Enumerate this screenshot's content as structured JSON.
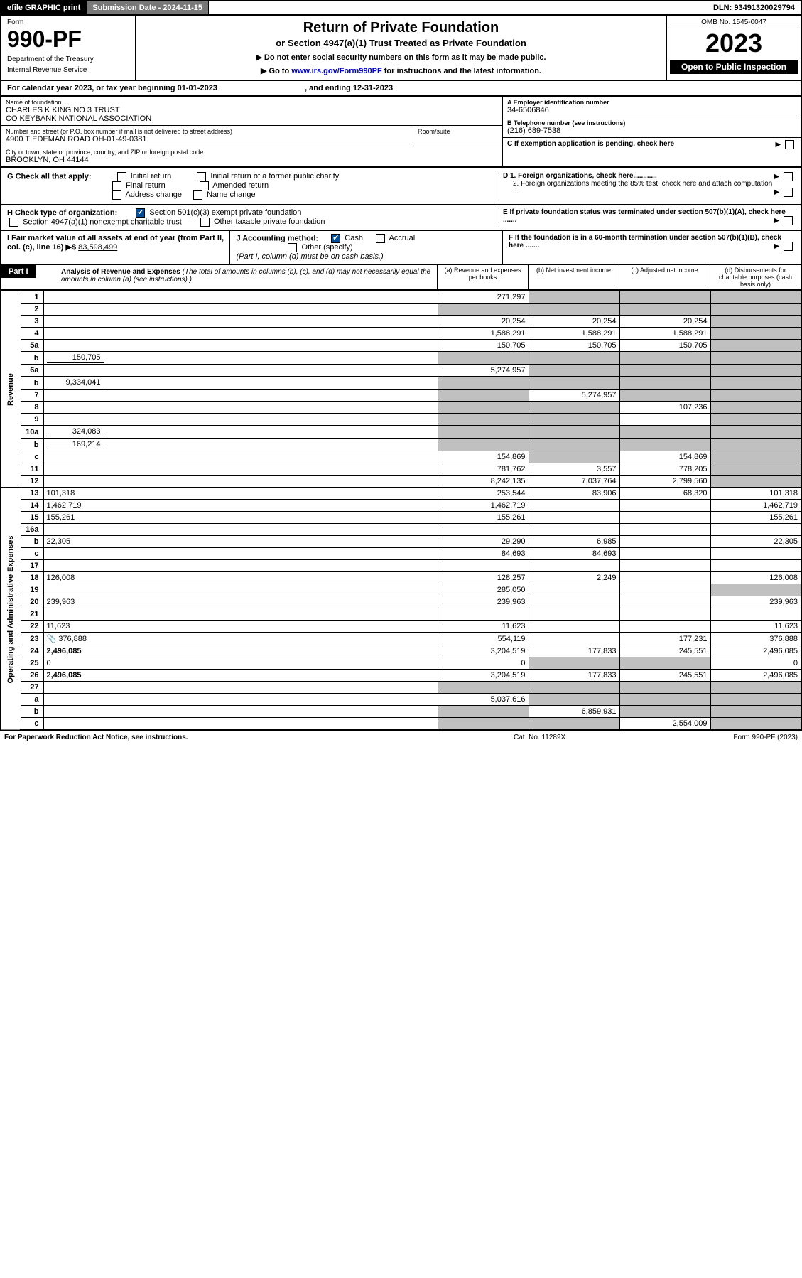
{
  "topbar": {
    "efile": "efile GRAPHIC print",
    "submission": "Submission Date - 2024-11-15",
    "dln": "DLN: 93491320029794"
  },
  "header": {
    "form_label": "Form",
    "form_number": "990-PF",
    "dept1": "Department of the Treasury",
    "dept2": "Internal Revenue Service",
    "title": "Return of Private Foundation",
    "subtitle": "or Section 4947(a)(1) Trust Treated as Private Foundation",
    "note1": "▶ Do not enter social security numbers on this form as it may be made public.",
    "note2_pre": "▶ Go to ",
    "note2_link": "www.irs.gov/Form990PF",
    "note2_post": " for instructions and the latest information.",
    "omb": "OMB No. 1545-0047",
    "year": "2023",
    "open": "Open to Public Inspection"
  },
  "calendar": {
    "text_pre": "For calendar year 2023, or tax year beginning ",
    "begin": "01-01-2023",
    "text_mid": " , and ending ",
    "end": "12-31-2023"
  },
  "info": {
    "name_label": "Name of foundation",
    "name1": "CHARLES K KING NO 3 TRUST",
    "name2": "CO KEYBANK NATIONAL ASSOCIATION",
    "addr_label": "Number and street (or P.O. box number if mail is not delivered to street address)",
    "addr": "4900 TIEDEMAN ROAD OH-01-49-0381",
    "room_label": "Room/suite",
    "city_label": "City or town, state or province, country, and ZIP or foreign postal code",
    "city": "BROOKLYN, OH  44144",
    "a_label": "A Employer identification number",
    "a_val": "34-6506846",
    "b_label": "B Telephone number (see instructions)",
    "b_val": "(216) 689-7538",
    "c_label": "C If exemption application is pending, check here",
    "d1": "D 1. Foreign organizations, check here............",
    "d2": "2. Foreign organizations meeting the 85% test, check here and attach computation ...",
    "e": "E  If private foundation status was terminated under section 507(b)(1)(A), check here .......",
    "f": "F  If the foundation is in a 60-month termination under section 507(b)(1)(B), check here .......",
    "g_label": "G Check all that apply:",
    "g_opts": [
      "Initial return",
      "Final return",
      "Address change",
      "Initial return of a former public charity",
      "Amended return",
      "Name change"
    ],
    "h_label": "H Check type of organization:",
    "h1": "Section 501(c)(3) exempt private foundation",
    "h2": "Section 4947(a)(1) nonexempt charitable trust",
    "h3": "Other taxable private foundation",
    "i_label": "I Fair market value of all assets at end of year (from Part II, col. (c), line 16) ▶$",
    "i_val": "83,598,499",
    "j_label": "J Accounting method:",
    "j_cash": "Cash",
    "j_accrual": "Accrual",
    "j_other": "Other (specify)",
    "j_note": "(Part I, column (d) must be on cash basis.)"
  },
  "part1": {
    "label": "Part I",
    "title": "Analysis of Revenue and Expenses",
    "note": "(The total of amounts in columns (b), (c), and (d) may not necessarily equal the amounts in column (a) (see instructions).)",
    "col_a": "(a) Revenue and expenses per books",
    "col_b": "(b) Net investment income",
    "col_c": "(c) Adjusted net income",
    "col_d": "(d) Disbursements for charitable purposes (cash basis only)"
  },
  "sections": {
    "revenue": "Revenue",
    "expenses": "Operating and Administrative Expenses"
  },
  "rows": [
    {
      "n": "1",
      "d": "",
      "a": "271,297",
      "b": "",
      "c": "",
      "bg": true,
      "cg": true,
      "dg": true
    },
    {
      "n": "2",
      "d": "",
      "a": "",
      "b": "",
      "c": "",
      "ag": true,
      "bg": true,
      "cg": true,
      "dg": true
    },
    {
      "n": "3",
      "d": "",
      "a": "20,254",
      "b": "20,254",
      "c": "20,254",
      "dg": true
    },
    {
      "n": "4",
      "d": "",
      "a": "1,588,291",
      "b": "1,588,291",
      "c": "1,588,291",
      "dg": true
    },
    {
      "n": "5a",
      "d": "",
      "a": "150,705",
      "b": "150,705",
      "c": "150,705",
      "dg": true
    },
    {
      "n": "b",
      "d": "",
      "inline": "150,705",
      "a": "",
      "b": "",
      "c": "",
      "ag": true,
      "bg": true,
      "cg": true,
      "dg": true
    },
    {
      "n": "6a",
      "d": "",
      "a": "5,274,957",
      "b": "",
      "c": "",
      "bg": true,
      "cg": true,
      "dg": true
    },
    {
      "n": "b",
      "d": "",
      "inline": "9,334,041",
      "a": "",
      "b": "",
      "c": "",
      "ag": true,
      "bg": true,
      "cg": true,
      "dg": true
    },
    {
      "n": "7",
      "d": "",
      "a": "",
      "b": "5,274,957",
      "c": "",
      "ag": true,
      "cg": true,
      "dg": true
    },
    {
      "n": "8",
      "d": "",
      "a": "",
      "b": "",
      "c": "107,236",
      "ag": true,
      "bg": true,
      "dg": true
    },
    {
      "n": "9",
      "d": "",
      "a": "",
      "b": "",
      "c": "",
      "ag": true,
      "bg": true,
      "dg": true
    },
    {
      "n": "10a",
      "d": "",
      "inline": "324,083",
      "a": "",
      "b": "",
      "c": "",
      "ag": true,
      "bg": true,
      "cg": true,
      "dg": true
    },
    {
      "n": "b",
      "d": "",
      "inline": "169,214",
      "a": "",
      "b": "",
      "c": "",
      "ag": true,
      "bg": true,
      "cg": true,
      "dg": true
    },
    {
      "n": "c",
      "d": "",
      "a": "154,869",
      "b": "",
      "c": "154,869",
      "bg": true,
      "dg": true
    },
    {
      "n": "11",
      "d": "",
      "a": "781,762",
      "b": "3,557",
      "c": "778,205",
      "dg": true
    },
    {
      "n": "12",
      "d": "",
      "a": "8,242,135",
      "b": "7,037,764",
      "c": "2,799,560",
      "dg": true,
      "bold": true
    },
    {
      "n": "13",
      "d": "101,318",
      "a": "253,544",
      "b": "83,906",
      "c": "68,320",
      "sect": "exp"
    },
    {
      "n": "14",
      "d": "1,462,719",
      "a": "1,462,719",
      "b": "",
      "c": ""
    },
    {
      "n": "15",
      "d": "155,261",
      "a": "155,261",
      "b": "",
      "c": ""
    },
    {
      "n": "16a",
      "d": "",
      "a": "",
      "b": "",
      "c": ""
    },
    {
      "n": "b",
      "d": "22,305",
      "a": "29,290",
      "b": "6,985",
      "c": ""
    },
    {
      "n": "c",
      "d": "",
      "a": "84,693",
      "b": "84,693",
      "c": ""
    },
    {
      "n": "17",
      "d": "",
      "a": "",
      "b": "",
      "c": ""
    },
    {
      "n": "18",
      "d": "126,008",
      "a": "128,257",
      "b": "2,249",
      "c": ""
    },
    {
      "n": "19",
      "d": "",
      "a": "285,050",
      "b": "",
      "c": "",
      "dg": true
    },
    {
      "n": "20",
      "d": "239,963",
      "a": "239,963",
      "b": "",
      "c": ""
    },
    {
      "n": "21",
      "d": "",
      "a": "",
      "b": "",
      "c": ""
    },
    {
      "n": "22",
      "d": "11,623",
      "a": "11,623",
      "b": "",
      "c": ""
    },
    {
      "n": "23",
      "d": "376,888",
      "icon": "📎",
      "a": "554,119",
      "b": "",
      "c": "177,231"
    },
    {
      "n": "24",
      "d": "2,496,085",
      "a": "3,204,519",
      "b": "177,833",
      "c": "245,551",
      "bold": true
    },
    {
      "n": "25",
      "d": "0",
      "a": "0",
      "b": "",
      "c": "",
      "bg": true,
      "cg": true
    },
    {
      "n": "26",
      "d": "2,496,085",
      "a": "3,204,519",
      "b": "177,833",
      "c": "245,551",
      "bold": true
    },
    {
      "n": "27",
      "d": "",
      "a": "",
      "b": "",
      "c": "",
      "ag": true,
      "bg": true,
      "cg": true,
      "dg": true
    },
    {
      "n": "a",
      "d": "",
      "a": "5,037,616",
      "b": "",
      "c": "",
      "bg": true,
      "cg": true,
      "dg": true
    },
    {
      "n": "b",
      "d": "",
      "a": "",
      "b": "6,859,931",
      "c": "",
      "ag": true,
      "cg": true,
      "dg": true
    },
    {
      "n": "c",
      "d": "",
      "a": "",
      "b": "",
      "c": "2,554,009",
      "ag": true,
      "bg": true,
      "dg": true
    }
  ],
  "footer": {
    "left": "For Paperwork Reduction Act Notice, see instructions.",
    "mid": "Cat. No. 11289X",
    "right": "Form 990-PF (2023)"
  }
}
